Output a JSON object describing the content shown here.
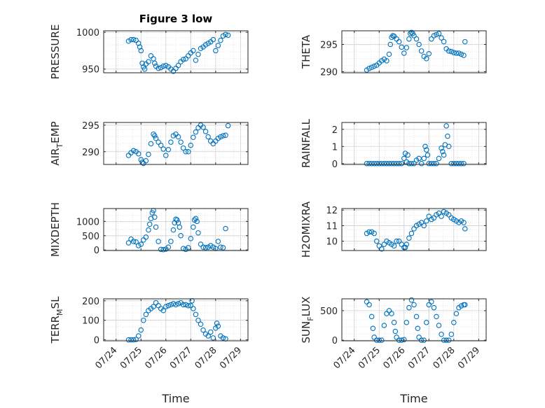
{
  "chart_data": [
    {
      "type": "scatter",
      "title": "Figure 3 low",
      "ylabel": "PRESSURE",
      "ylabel_sub": "",
      "xlabel": "",
      "ylim": [
        945,
        1002
      ],
      "yticks": [
        950,
        1000
      ],
      "xticks": [],
      "grid": true,
      "color": "#0072BD",
      "series": [
        {
          "x": [
            0.5,
            0.6,
            0.7,
            0.8,
            0.9,
            0.95,
            1.0,
            1.05,
            1.1,
            1.15,
            1.2,
            1.3,
            1.4,
            1.5,
            1.55,
            1.6,
            1.7,
            1.8,
            1.9,
            2.0,
            2.1,
            2.2,
            2.3,
            2.4,
            2.5,
            2.6,
            2.7,
            2.8,
            2.9,
            3.0,
            3.1,
            3.2,
            3.3,
            3.4,
            3.5,
            3.6,
            3.7,
            3.8,
            3.9,
            4.0,
            4.1,
            4.2,
            4.3,
            4.4,
            4.5
          ],
          "y": [
            988,
            990,
            990,
            989,
            985,
            980,
            975,
            958,
            953,
            950,
            957,
            960,
            968,
            964,
            958,
            954,
            951,
            952,
            954,
            955,
            953,
            950,
            947,
            951,
            955,
            960,
            963,
            964,
            968,
            972,
            975,
            962,
            970,
            978,
            980,
            983,
            985,
            987,
            990,
            975,
            982,
            989,
            995,
            997,
            996
          ]
        }
      ]
    },
    {
      "type": "scatter",
      "title": "",
      "ylabel": "THETA",
      "ylabel_sub": "",
      "xlabel": "",
      "ylim": [
        289.8,
        297.5
      ],
      "yticks": [
        290,
        295
      ],
      "xticks": [],
      "grid": true,
      "color": "#0072BD",
      "series": [
        {
          "x": [
            0.5,
            0.6,
            0.7,
            0.8,
            0.9,
            1.0,
            1.1,
            1.2,
            1.3,
            1.4,
            1.45,
            1.5,
            1.55,
            1.6,
            1.7,
            1.8,
            1.9,
            2.0,
            2.1,
            2.2,
            2.25,
            2.3,
            2.35,
            2.4,
            2.5,
            2.6,
            2.7,
            2.8,
            2.9,
            3.0,
            3.1,
            3.2,
            3.3,
            3.4,
            3.5,
            3.6,
            3.7,
            3.8,
            3.9,
            4.0,
            4.1,
            4.2,
            4.3,
            4.4,
            4.45
          ],
          "y": [
            290.3,
            290.6,
            290.8,
            291.0,
            291.2,
            291.6,
            292.0,
            292.3,
            292.0,
            293.2,
            295.0,
            296.3,
            296.6,
            296.5,
            296.0,
            295.5,
            294.5,
            293.4,
            294.4,
            296.0,
            297.0,
            297.2,
            297.0,
            296.6,
            296.0,
            295.0,
            293.8,
            292.8,
            292.4,
            293.3,
            296.0,
            296.6,
            296.8,
            297.0,
            296.2,
            295.5,
            294.2,
            293.8,
            293.7,
            293.5,
            293.4,
            293.4,
            293.2,
            293.0,
            295.5
          ]
        }
      ]
    },
    {
      "type": "scatter",
      "title": "",
      "ylabel": "AIR",
      "ylabel_sub": "T",
      "ylabel_after": "EMP",
      "xlabel": "",
      "ylim": [
        287.6,
        295.5
      ],
      "yticks": [
        290,
        295
      ],
      "xticks": [],
      "grid": true,
      "color": "#0072BD",
      "series": [
        {
          "x": [
            0.5,
            0.6,
            0.7,
            0.8,
            0.9,
            1.0,
            1.05,
            1.1,
            1.2,
            1.3,
            1.4,
            1.5,
            1.55,
            1.6,
            1.7,
            1.8,
            1.9,
            2.0,
            2.1,
            2.2,
            2.3,
            2.4,
            2.5,
            2.6,
            2.7,
            2.8,
            2.9,
            3.0,
            3.1,
            3.2,
            3.3,
            3.4,
            3.5,
            3.6,
            3.7,
            3.8,
            3.9,
            4.0,
            4.1,
            4.2,
            4.3,
            4.4,
            4.5
          ],
          "y": [
            289.3,
            289.8,
            290.2,
            290.0,
            289.6,
            288.5,
            288.0,
            287.8,
            288.3,
            289.5,
            291.5,
            293.3,
            293.0,
            292.5,
            291.8,
            291.2,
            290.5,
            289.3,
            290.4,
            291.8,
            293.0,
            293.3,
            292.8,
            291.8,
            290.7,
            290.0,
            290.0,
            291.2,
            292.7,
            293.7,
            294.5,
            295.0,
            294.6,
            293.8,
            292.8,
            292.0,
            291.5,
            292.0,
            292.5,
            292.8,
            293.0,
            293.1,
            294.9
          ]
        }
      ]
    },
    {
      "type": "scatter",
      "title": "",
      "ylabel": "RAINFALL",
      "ylabel_sub": "",
      "xlabel": "",
      "ylim": [
        -0.05,
        2.4
      ],
      "yticks": [
        0,
        1,
        2
      ],
      "xticks": [],
      "grid": true,
      "color": "#0072BD",
      "series": [
        {
          "x": [
            0.5,
            0.6,
            0.7,
            0.8,
            0.9,
            1.0,
            1.1,
            1.2,
            1.3,
            1.4,
            1.5,
            1.6,
            1.7,
            1.8,
            1.9,
            2.0,
            2.05,
            2.1,
            2.15,
            2.2,
            2.3,
            2.4,
            2.5,
            2.6,
            2.7,
            2.8,
            2.85,
            2.9,
            2.95,
            3.0,
            3.1,
            3.2,
            3.3,
            3.4,
            3.5,
            3.55,
            3.6,
            3.65,
            3.7,
            3.75,
            3.8,
            3.9,
            4.0,
            4.1,
            4.2,
            4.3,
            4.4
          ],
          "y": [
            0.0,
            0.0,
            0.0,
            0.0,
            0.0,
            0.0,
            0.0,
            0.0,
            0.0,
            0.0,
            0.0,
            0.0,
            0.0,
            0.0,
            0.0,
            0.3,
            0.6,
            0.1,
            0.5,
            0.0,
            0.0,
            0.0,
            0.2,
            0.3,
            0.0,
            0.3,
            1.0,
            0.8,
            0.5,
            0.0,
            0.0,
            0.0,
            0.0,
            0.3,
            0.9,
            0.7,
            0.5,
            1.1,
            2.2,
            1.6,
            1.0,
            0.0,
            0.0,
            0.0,
            0.0,
            0.0,
            0.0
          ]
        }
      ]
    },
    {
      "type": "scatter",
      "title": "",
      "ylabel": "MIXDEPTH",
      "ylabel_sub": "",
      "xlabel": "",
      "ylim": [
        -20,
        1450
      ],
      "yticks": [
        0,
        500,
        1000
      ],
      "xticks": [],
      "grid": true,
      "color": "#0072BD",
      "series": [
        {
          "x": [
            0.5,
            0.6,
            0.7,
            0.8,
            0.9,
            1.0,
            1.1,
            1.2,
            1.3,
            1.35,
            1.4,
            1.45,
            1.5,
            1.55,
            1.6,
            1.7,
            1.8,
            1.9,
            2.0,
            2.1,
            2.2,
            2.3,
            2.35,
            2.4,
            2.45,
            2.5,
            2.55,
            2.6,
            2.7,
            2.8,
            2.9,
            3.0,
            3.1,
            3.15,
            3.2,
            3.25,
            3.3,
            3.4,
            3.5,
            3.6,
            3.7,
            3.8,
            3.9,
            4.0,
            4.1,
            4.2,
            4.3,
            4.4
          ],
          "y": [
            250,
            380,
            300,
            280,
            150,
            200,
            350,
            450,
            700,
            900,
            1100,
            1300,
            1380,
            1150,
            800,
            300,
            20,
            10,
            30,
            100,
            300,
            700,
            950,
            1080,
            1050,
            950,
            800,
            500,
            50,
            20,
            80,
            400,
            800,
            1050,
            1100,
            1000,
            600,
            200,
            100,
            80,
            100,
            150,
            100,
            50,
            300,
            100,
            80,
            750
          ]
        }
      ]
    },
    {
      "type": "scatter",
      "title": "",
      "ylabel": "H2OMIXRA",
      "ylabel_sub": "",
      "xlabel": "",
      "ylim": [
        9.4,
        12.1
      ],
      "yticks": [
        10,
        11,
        12
      ],
      "xticks": [],
      "grid": true,
      "color": "#0072BD",
      "series": [
        {
          "x": [
            0.5,
            0.6,
            0.7,
            0.8,
            0.9,
            1.0,
            1.1,
            1.2,
            1.3,
            1.4,
            1.5,
            1.6,
            1.7,
            1.8,
            1.9,
            2.0,
            2.05,
            2.1,
            2.2,
            2.3,
            2.4,
            2.5,
            2.6,
            2.7,
            2.8,
            2.9,
            3.0,
            3.1,
            3.2,
            3.3,
            3.4,
            3.5,
            3.6,
            3.7,
            3.8,
            3.9,
            4.0,
            4.1,
            4.2,
            4.3,
            4.4,
            4.45
          ],
          "y": [
            10.5,
            10.6,
            10.6,
            10.5,
            10.0,
            9.7,
            9.5,
            9.8,
            10.0,
            9.9,
            9.8,
            9.7,
            10.0,
            10.0,
            9.8,
            9.6,
            9.6,
            9.8,
            10.2,
            10.5,
            10.8,
            11.0,
            11.1,
            11.2,
            11.0,
            11.3,
            11.6,
            11.4,
            11.5,
            11.7,
            11.8,
            11.6,
            11.9,
            11.8,
            11.7,
            11.5,
            11.4,
            11.3,
            11.2,
            11.3,
            11.2,
            10.8
          ]
        }
      ]
    },
    {
      "type": "scatter",
      "title": "",
      "ylabel": "TERR",
      "ylabel_sub": "M",
      "ylabel_after": "SL",
      "xlabel": "Time",
      "ylim": [
        -5,
        210
      ],
      "yticks": [
        0,
        100,
        200
      ],
      "xticks": [
        "07/24",
        "07/25",
        "07/26",
        "07/27",
        "07/28",
        "07/29"
      ],
      "grid": true,
      "color": "#0072BD",
      "series": [
        {
          "x": [
            0.5,
            0.6,
            0.7,
            0.8,
            0.9,
            1.0,
            1.1,
            1.2,
            1.3,
            1.4,
            1.5,
            1.6,
            1.7,
            1.8,
            1.9,
            2.0,
            2.1,
            2.2,
            2.3,
            2.4,
            2.5,
            2.6,
            2.7,
            2.8,
            2.9,
            3.0,
            3.05,
            3.1,
            3.2,
            3.3,
            3.4,
            3.5,
            3.6,
            3.7,
            3.8,
            3.9,
            4.0,
            4.05,
            4.1,
            4.2,
            4.3,
            4.4
          ],
          "y": [
            0,
            0,
            0,
            2,
            20,
            50,
            100,
            130,
            150,
            160,
            170,
            190,
            175,
            160,
            150,
            170,
            175,
            180,
            185,
            180,
            185,
            190,
            180,
            180,
            175,
            175,
            200,
            160,
            130,
            100,
            80,
            50,
            30,
            20,
            40,
            10,
            60,
            85,
            70,
            20,
            10,
            5
          ]
        }
      ]
    },
    {
      "type": "scatter",
      "title": "",
      "ylabel": "SUN",
      "ylabel_sub": "F",
      "ylabel_after": "LUX",
      "xlabel": "Time",
      "ylim": [
        -10,
        700
      ],
      "yticks": [
        0,
        500
      ],
      "xticks": [
        "07/24",
        "07/25",
        "07/26",
        "07/27",
        "07/28",
        "07/29"
      ],
      "grid": true,
      "color": "#0072BD",
      "series": [
        {
          "x": [
            0.5,
            0.6,
            0.7,
            0.75,
            0.8,
            0.9,
            1.0,
            1.1,
            1.2,
            1.3,
            1.4,
            1.5,
            1.6,
            1.65,
            1.7,
            1.8,
            1.9,
            2.0,
            2.1,
            2.2,
            2.3,
            2.4,
            2.5,
            2.55,
            2.6,
            2.7,
            2.8,
            2.9,
            3.0,
            3.1,
            3.2,
            3.3,
            3.4,
            3.5,
            3.6,
            3.7,
            3.8,
            3.9,
            4.0,
            4.1,
            4.2,
            4.3,
            4.4,
            4.45
          ],
          "y": [
            650,
            600,
            400,
            200,
            50,
            0,
            0,
            0,
            250,
            450,
            500,
            450,
            300,
            150,
            50,
            0,
            0,
            10,
            300,
            550,
            680,
            600,
            400,
            200,
            50,
            0,
            0,
            300,
            600,
            650,
            550,
            400,
            250,
            100,
            0,
            0,
            0,
            100,
            300,
            450,
            550,
            580,
            600,
            600
          ]
        }
      ]
    }
  ]
}
